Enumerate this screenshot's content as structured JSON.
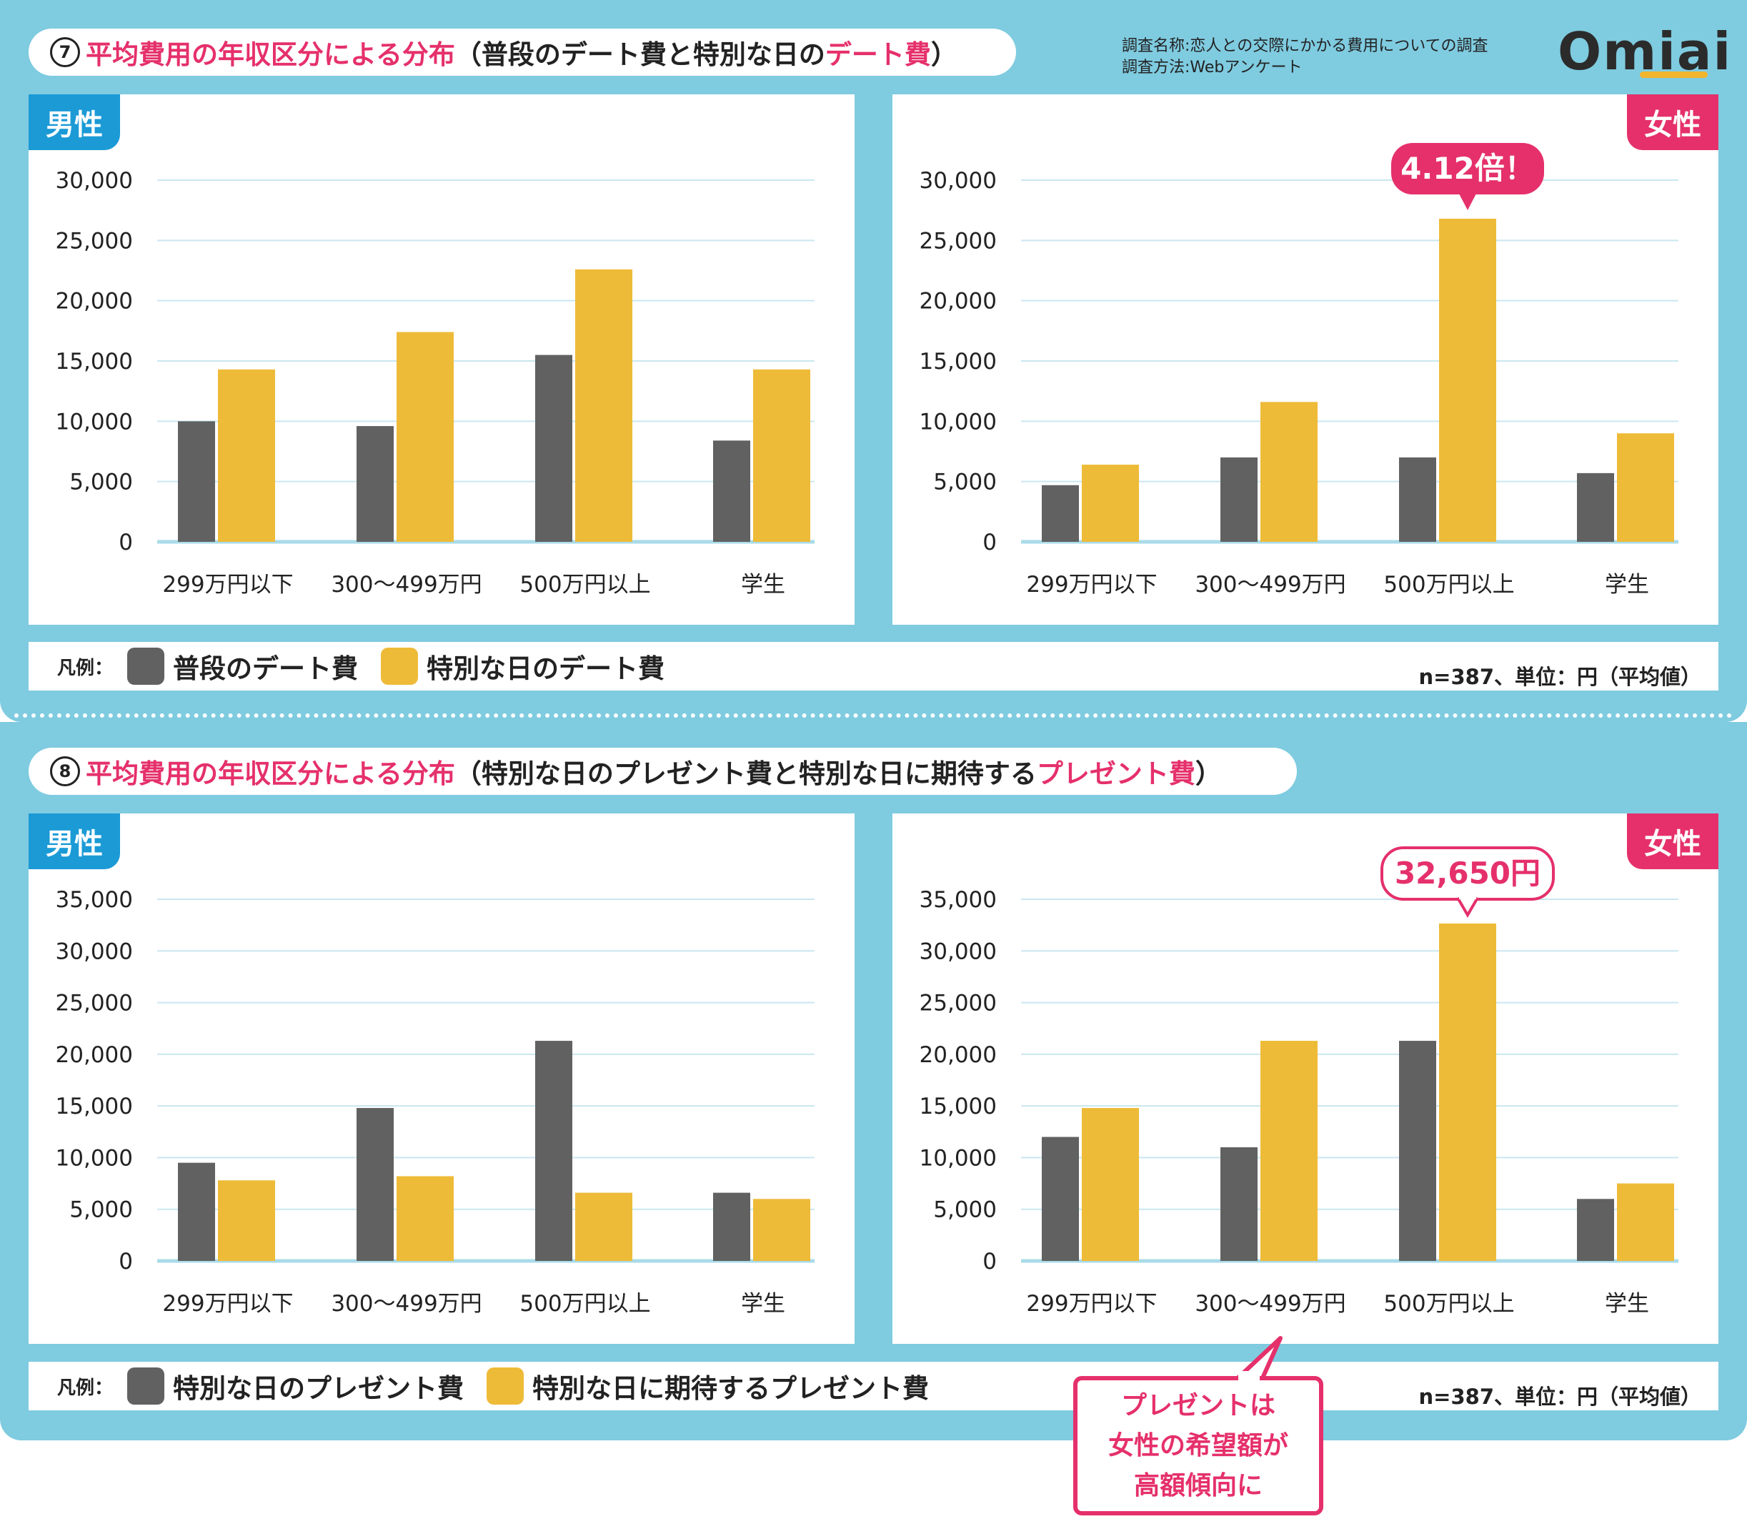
{
  "header": {
    "survey_line1": "調査名称:恋人との交際にかかる費用についての調査",
    "survey_line2": "調査方法:Webアンケート",
    "logo": "Omiai"
  },
  "colors": {
    "gray": "#616161",
    "yellow": "#eebb38",
    "male_tag": "#1b9ad6",
    "female_tag": "#e5306b",
    "accent": "#e5306b",
    "background": "#7fcbe0"
  },
  "section7": {
    "number": "7",
    "title_pink": "平均費用の年収区分による分布",
    "title_open": "（普段のデート費と特別な日の",
    "title_pink2": "デート費",
    "title_close": "）",
    "legend_label": "凡例：",
    "legend_a": "普段のデート費",
    "legend_b": "特別な日のデート費",
    "note": "n=387、単位：円（平均値）"
  },
  "section8": {
    "number": "8",
    "title_pink": "平均費用の年収区分による分布",
    "title_open": "（特別な日のプレゼント費と特別な日に期待する",
    "title_pink2": "プレゼント費",
    "title_close": "）",
    "legend_label": "凡例：",
    "legend_a": "特別な日のプレゼント費",
    "legend_b": "特別な日に期待するプレゼント費",
    "note": "n=387、単位：円（平均値）"
  },
  "tags": {
    "male": "男性",
    "female": "女性"
  },
  "callout": {
    "line1": "プレゼントは",
    "line2": "女性の希望額が",
    "line3": "高額傾向に"
  },
  "chart_data": [
    {
      "id": "s7-male",
      "type": "bar",
      "title": "男性",
      "categories": [
        "299万円以下",
        "300〜499万円",
        "500万円以上",
        "学生"
      ],
      "series": [
        {
          "name": "普段のデート費",
          "values": [
            10000,
            9600,
            15500,
            8400
          ]
        },
        {
          "name": "特別な日のデート費",
          "values": [
            14300,
            17400,
            22600,
            14300
          ]
        }
      ],
      "ylim": [
        0,
        30000
      ],
      "ticks": [
        0,
        5000,
        10000,
        15000,
        20000,
        25000,
        30000
      ],
      "tick_labels": [
        "0",
        "5,000",
        "10,000",
        "15,000",
        "20,000",
        "25,000",
        "30,000"
      ]
    },
    {
      "id": "s7-female",
      "type": "bar",
      "title": "女性",
      "categories": [
        "299万円以下",
        "300〜499万円",
        "500万円以上",
        "学生"
      ],
      "series": [
        {
          "name": "普段のデート費",
          "values": [
            4700,
            7000,
            7000,
            5700
          ]
        },
        {
          "name": "特別な日のデート費",
          "values": [
            6400,
            11600,
            26800,
            9000
          ]
        }
      ],
      "ylim": [
        0,
        30000
      ],
      "ticks": [
        0,
        5000,
        10000,
        15000,
        20000,
        25000,
        30000
      ],
      "tick_labels": [
        "0",
        "5,000",
        "10,000",
        "15,000",
        "20,000",
        "25,000",
        "30,000"
      ],
      "annotation": {
        "text": "4.12倍！",
        "category": 2,
        "series": 1,
        "value": 26800
      }
    },
    {
      "id": "s8-male",
      "type": "bar",
      "title": "男性",
      "categories": [
        "299万円以下",
        "300〜499万円",
        "500万円以上",
        "学生"
      ],
      "series": [
        {
          "name": "特別な日のプレゼント費",
          "values": [
            9500,
            14800,
            21300,
            6600
          ]
        },
        {
          "name": "特別な日に期待するプレゼント費",
          "values": [
            7800,
            8200,
            6600,
            6000
          ]
        }
      ],
      "ylim": [
        0,
        35000
      ],
      "ticks": [
        0,
        5000,
        10000,
        15000,
        20000,
        25000,
        30000,
        35000
      ],
      "tick_labels": [
        "0",
        "5,000",
        "10,000",
        "15,000",
        "20,000",
        "25,000",
        "30,000",
        "35,000"
      ]
    },
    {
      "id": "s8-female",
      "type": "bar",
      "title": "女性",
      "categories": [
        "299万円以下",
        "300〜499万円",
        "500万円以上",
        "学生"
      ],
      "series": [
        {
          "name": "特別な日のプレゼント費",
          "values": [
            12000,
            11000,
            21300,
            6000
          ]
        },
        {
          "name": "特別な日に期待するプレゼント費",
          "values": [
            14800,
            21300,
            32650,
            7500
          ]
        }
      ],
      "ylim": [
        0,
        35000
      ],
      "ticks": [
        0,
        5000,
        10000,
        15000,
        20000,
        25000,
        30000,
        35000
      ],
      "tick_labels": [
        "0",
        "5,000",
        "10,000",
        "15,000",
        "20,000",
        "25,000",
        "30,000",
        "35,000"
      ],
      "annotation": {
        "text": "32,650円",
        "category": 2,
        "series": 1,
        "value": 32650
      }
    }
  ]
}
